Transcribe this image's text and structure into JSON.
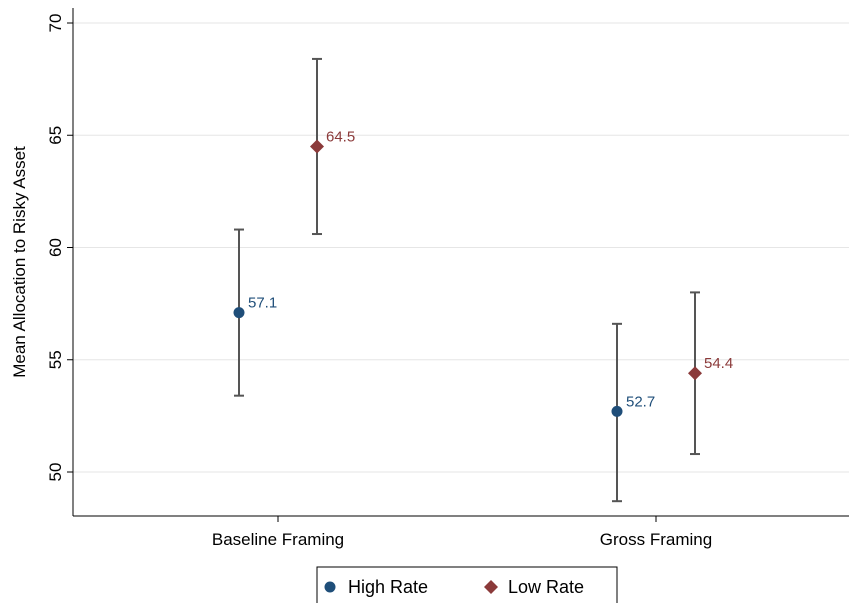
{
  "chart_data": {
    "type": "scatter",
    "categories": [
      "Baseline Framing",
      "Gross Framing"
    ],
    "ylabel": "Mean Allocation to Risky Asset",
    "xlabel": "",
    "ylim": [
      48.5,
      70
    ],
    "yticks": [
      50,
      55,
      60,
      65,
      70
    ],
    "grid": true,
    "legend_position": "bottom",
    "series": [
      {
        "name": "High Rate",
        "marker": "circle",
        "color": "#1f4e79",
        "values": [
          57.1,
          52.7
        ],
        "ci_low": [
          53.4,
          48.7
        ],
        "ci_high": [
          60.8,
          56.6
        ],
        "labels": [
          "57.1",
          "52.7"
        ]
      },
      {
        "name": "Low Rate",
        "marker": "diamond",
        "color": "#8b3a3a",
        "values": [
          64.5,
          54.4
        ],
        "ci_low": [
          60.6,
          50.8
        ],
        "ci_high": [
          68.4,
          58.0
        ],
        "labels": [
          "64.5",
          "54.4"
        ]
      }
    ],
    "errorbar_color": "#555555"
  }
}
